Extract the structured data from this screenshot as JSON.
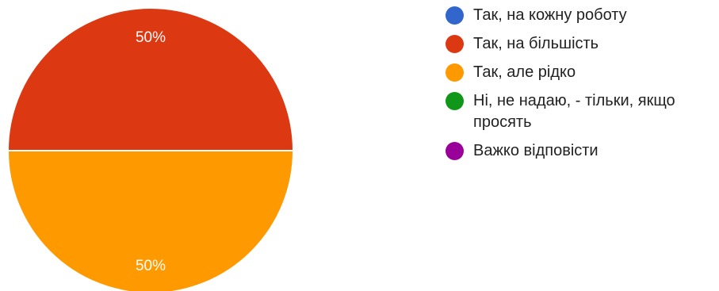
{
  "chart_data": {
    "type": "pie",
    "categories": [
      "Так, на кожну роботу",
      "Так, на більшість",
      "Так, але рідко",
      "Ні, не надаю, - тільки, якщо просять",
      "Важко відповісти"
    ],
    "values": [
      0,
      50,
      50,
      0,
      0
    ],
    "value_labels": [
      "",
      "50%",
      "50%",
      "",
      ""
    ],
    "colors": [
      "#3366cc",
      "#dc3912",
      "#ff9900",
      "#109618",
      "#990099"
    ],
    "legend_position": "right",
    "title": ""
  }
}
